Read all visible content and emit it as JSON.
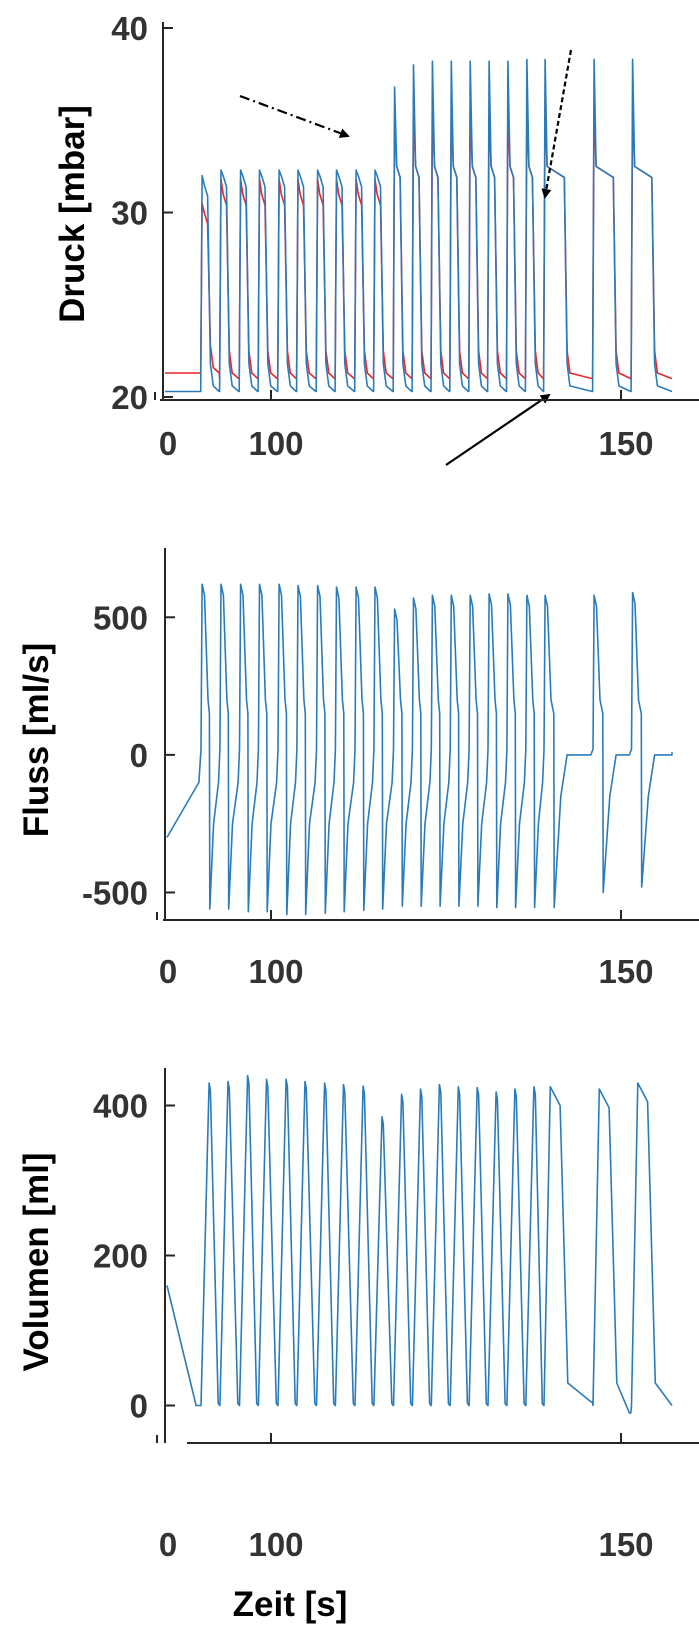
{
  "colors": {
    "blue": "#2b7bba",
    "red": "#e8272a",
    "axis": "#262626",
    "annotation": "#000000"
  },
  "chart_data": [
    {
      "type": "line",
      "ylabel": "Druck [mbar]",
      "xlabel": "",
      "ylim": [
        20,
        40
      ],
      "yticks": [
        {
          "v": 20,
          "label": "20"
        },
        {
          "v": 30,
          "label": "30"
        },
        {
          "v": 40,
          "label": "40"
        }
      ],
      "xticks": [
        {
          "v": 100,
          "label": "100"
        },
        {
          "v": 150,
          "label": "150"
        }
      ],
      "x_break_label": "0",
      "annotations": [
        "dash-dot arrow at step change",
        "dashed arrow at plateau",
        "solid arrow at baseline"
      ],
      "series": [
        {
          "color": "red",
          "breaths": [
            {
              "t": 90.0,
              "peak": 30.5,
              "plateau": 30.0,
              "baseline": 21.3
            },
            {
              "t": 92.7,
              "peak": 31.8,
              "plateau": 31.0,
              "baseline": 21.0
            },
            {
              "t": 95.5,
              "peak": 31.8,
              "plateau": 31.0,
              "baseline": 21.0
            },
            {
              "t": 98.2,
              "peak": 31.8,
              "plateau": 31.0,
              "baseline": 21.0
            },
            {
              "t": 101.0,
              "peak": 31.8,
              "plateau": 31.0,
              "baseline": 21.0
            },
            {
              "t": 103.7,
              "peak": 31.8,
              "plateau": 31.0,
              "baseline": 21.0
            },
            {
              "t": 106.5,
              "peak": 31.8,
              "plateau": 31.0,
              "baseline": 21.0
            },
            {
              "t": 109.2,
              "peak": 31.8,
              "plateau": 31.0,
              "baseline": 21.0
            },
            {
              "t": 112.0,
              "peak": 31.8,
              "plateau": 31.0,
              "baseline": 21.0
            },
            {
              "t": 114.7,
              "peak": 31.8,
              "plateau": 31.0,
              "baseline": 21.0
            },
            {
              "t": 117.5,
              "peak": 35.2,
              "plateau": 32.5,
              "baseline": 21.0
            },
            {
              "t": 120.2,
              "peak": 35.5,
              "plateau": 32.5,
              "baseline": 21.0
            },
            {
              "t": 122.9,
              "peak": 35.5,
              "plateau": 32.5,
              "baseline": 21.0
            },
            {
              "t": 125.6,
              "peak": 35.5,
              "plateau": 32.5,
              "baseline": 21.0
            },
            {
              "t": 128.3,
              "peak": 35.5,
              "plateau": 32.5,
              "baseline": 21.0
            },
            {
              "t": 131.0,
              "peak": 35.5,
              "plateau": 32.5,
              "baseline": 21.0
            },
            {
              "t": 133.7,
              "peak": 35.5,
              "plateau": 32.5,
              "baseline": 21.0
            },
            {
              "t": 136.4,
              "peak": 35.8,
              "plateau": 32.5,
              "baseline": 21.0
            },
            {
              "t": 139.0,
              "peak": 35.8,
              "plateau": 32.5,
              "baseline": 21.0
            },
            {
              "t": 146.0,
              "peak": 35.8,
              "plateau": 32.5,
              "baseline": 21.0
            },
            {
              "t": 151.5,
              "peak": 35.8,
              "plateau": 32.5,
              "baseline": 21.0
            }
          ]
        },
        {
          "color": "blue",
          "breaths": [
            {
              "t": 90.0,
              "peak": 32.0,
              "plateau": 31.5,
              "baseline": 20.3
            },
            {
              "t": 92.7,
              "peak": 32.3,
              "plateau": 32.0,
              "baseline": 20.3
            },
            {
              "t": 95.5,
              "peak": 32.3,
              "plateau": 32.0,
              "baseline": 20.3
            },
            {
              "t": 98.2,
              "peak": 32.3,
              "plateau": 32.0,
              "baseline": 20.3
            },
            {
              "t": 101.0,
              "peak": 32.3,
              "plateau": 32.0,
              "baseline": 20.3
            },
            {
              "t": 103.7,
              "peak": 32.3,
              "plateau": 32.0,
              "baseline": 20.3
            },
            {
              "t": 106.5,
              "peak": 32.3,
              "plateau": 32.0,
              "baseline": 20.3
            },
            {
              "t": 109.2,
              "peak": 32.3,
              "plateau": 32.0,
              "baseline": 20.3
            },
            {
              "t": 112.0,
              "peak": 32.3,
              "plateau": 32.0,
              "baseline": 20.3
            },
            {
              "t": 114.7,
              "peak": 32.3,
              "plateau": 32.0,
              "baseline": 20.3
            },
            {
              "t": 117.5,
              "peak": 36.8,
              "plateau": 32.5,
              "baseline": 20.3
            },
            {
              "t": 120.2,
              "peak": 38.0,
              "plateau": 32.5,
              "baseline": 20.3
            },
            {
              "t": 122.9,
              "peak": 38.2,
              "plateau": 32.5,
              "baseline": 20.3
            },
            {
              "t": 125.6,
              "peak": 38.2,
              "plateau": 32.5,
              "baseline": 20.3
            },
            {
              "t": 128.3,
              "peak": 38.2,
              "plateau": 32.5,
              "baseline": 20.3
            },
            {
              "t": 131.0,
              "peak": 38.2,
              "plateau": 32.5,
              "baseline": 20.3
            },
            {
              "t": 133.7,
              "peak": 38.2,
              "plateau": 32.5,
              "baseline": 20.3
            },
            {
              "t": 136.4,
              "peak": 38.3,
              "plateau": 32.5,
              "baseline": 20.3
            },
            {
              "t": 139.0,
              "peak": 38.3,
              "plateau": 32.5,
              "baseline": 20.3
            },
            {
              "t": 146.0,
              "peak": 38.3,
              "plateau": 32.5,
              "baseline": 20.3
            },
            {
              "t": 151.5,
              "peak": 38.3,
              "plateau": 32.5,
              "baseline": 20.3
            }
          ]
        }
      ]
    },
    {
      "type": "line",
      "ylabel": "Fluss [ml/s]",
      "xlabel": "",
      "ylim": [
        -600,
        650
      ],
      "yticks": [
        {
          "v": -500,
          "label": "-500"
        },
        {
          "v": 0,
          "label": "0"
        },
        {
          "v": 500,
          "label": "500"
        }
      ],
      "xticks": [
        {
          "v": 100,
          "label": "100"
        },
        {
          "v": 150,
          "label": "150"
        }
      ],
      "x_break_label": "0",
      "series": [
        {
          "color": "blue",
          "breaths": [
            {
              "t": 90.0,
              "peak": 620,
              "trough": -560
            },
            {
              "t": 92.7,
              "peak": 620,
              "trough": -560
            },
            {
              "t": 95.5,
              "peak": 620,
              "trough": -570
            },
            {
              "t": 98.2,
              "peak": 620,
              "trough": -570
            },
            {
              "t": 101.0,
              "peak": 620,
              "trough": -580
            },
            {
              "t": 103.7,
              "peak": 615,
              "trough": -580
            },
            {
              "t": 106.5,
              "peak": 615,
              "trough": -575
            },
            {
              "t": 109.2,
              "peak": 610,
              "trough": -570
            },
            {
              "t": 112.0,
              "peak": 610,
              "trough": -565
            },
            {
              "t": 114.7,
              "peak": 610,
              "trough": -560
            },
            {
              "t": 117.5,
              "peak": 530,
              "trough": -550
            },
            {
              "t": 120.2,
              "peak": 570,
              "trough": -550
            },
            {
              "t": 122.9,
              "peak": 580,
              "trough": -550
            },
            {
              "t": 125.6,
              "peak": 580,
              "trough": -550
            },
            {
              "t": 128.3,
              "peak": 580,
              "trough": -550
            },
            {
              "t": 131.0,
              "peak": 585,
              "trough": -555
            },
            {
              "t": 133.7,
              "peak": 585,
              "trough": -555
            },
            {
              "t": 136.4,
              "peak": 580,
              "trough": -555
            },
            {
              "t": 139.0,
              "peak": 580,
              "trough": -555
            },
            {
              "t": 146.0,
              "peak": 580,
              "trough": -500
            },
            {
              "t": 151.5,
              "peak": 590,
              "trough": -480
            }
          ]
        }
      ]
    },
    {
      "type": "line",
      "ylabel": "Volumen [ml]",
      "xlabel": "Zeit [s]",
      "ylim": [
        -30,
        450
      ],
      "yticks": [
        {
          "v": 0,
          "label": "0"
        },
        {
          "v": 200,
          "label": "200"
        },
        {
          "v": 400,
          "label": "400"
        }
      ],
      "xticks": [
        {
          "v": 100,
          "label": "100"
        },
        {
          "v": 150,
          "label": "150"
        }
      ],
      "x_break_label": "0",
      "series": [
        {
          "color": "blue",
          "breaths": [
            {
              "t": 90.0,
              "peak": 430,
              "trough": 0
            },
            {
              "t": 92.7,
              "peak": 432,
              "trough": 0
            },
            {
              "t": 95.5,
              "peak": 440,
              "trough": 0
            },
            {
              "t": 98.2,
              "peak": 435,
              "trough": 0
            },
            {
              "t": 101.0,
              "peak": 435,
              "trough": 0
            },
            {
              "t": 103.7,
              "peak": 432,
              "trough": 0
            },
            {
              "t": 106.5,
              "peak": 430,
              "trough": 0
            },
            {
              "t": 109.2,
              "peak": 428,
              "trough": 0
            },
            {
              "t": 112.0,
              "peak": 426,
              "trough": 0
            },
            {
              "t": 114.7,
              "peak": 385,
              "trough": 0
            },
            {
              "t": 117.5,
              "peak": 415,
              "trough": 0
            },
            {
              "t": 120.2,
              "peak": 422,
              "trough": 0
            },
            {
              "t": 122.9,
              "peak": 428,
              "trough": 0
            },
            {
              "t": 125.6,
              "peak": 425,
              "trough": 0
            },
            {
              "t": 128.3,
              "peak": 424,
              "trough": 0
            },
            {
              "t": 131.0,
              "peak": 418,
              "trough": 0
            },
            {
              "t": 133.7,
              "peak": 422,
              "trough": 0
            },
            {
              "t": 136.4,
              "peak": 425,
              "trough": 0
            },
            {
              "t": 139.0,
              "peak": 425,
              "trough": 5
            },
            {
              "t": 146.0,
              "peak": 422,
              "trough": -10
            },
            {
              "t": 151.5,
              "peak": 430,
              "trough": 0
            }
          ]
        }
      ]
    }
  ]
}
